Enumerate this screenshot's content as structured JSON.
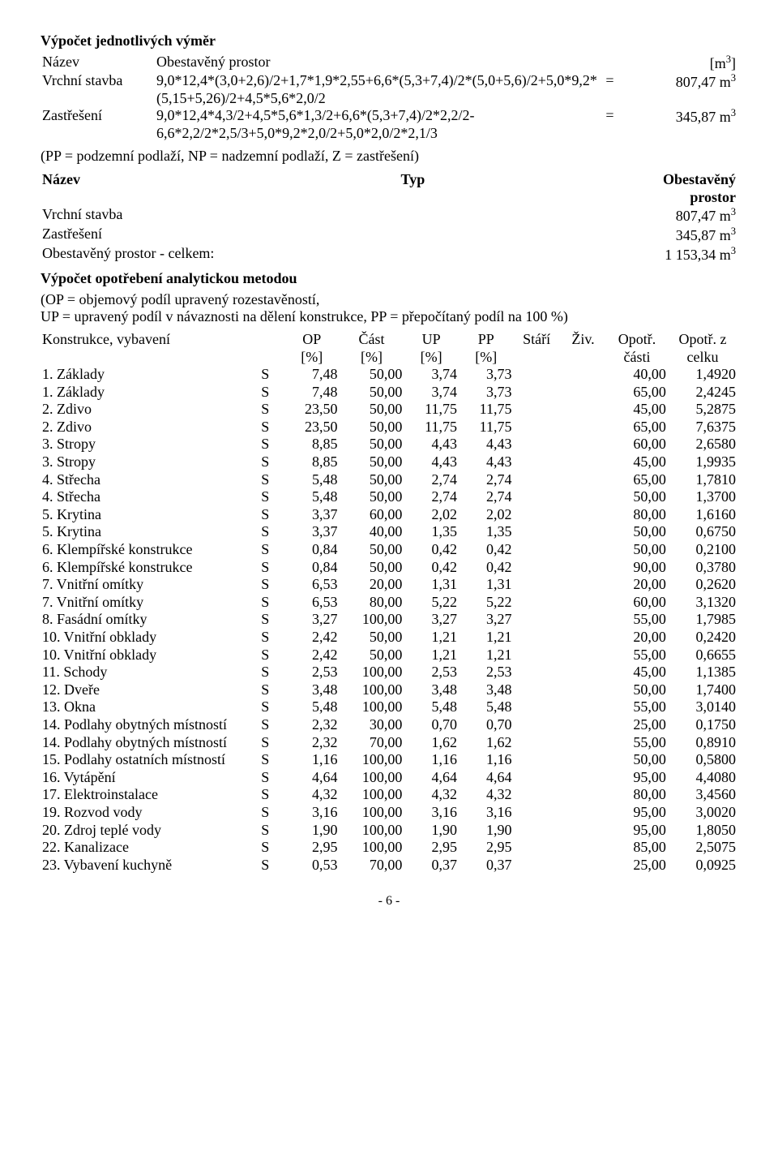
{
  "s1": {
    "title": "Výpočet jednotlivých výměr",
    "h_name": "Název",
    "h_space": "Obestavěný prostor",
    "h_unit": "[m",
    "h_unit_sup": "3",
    "h_unit_close": "]",
    "rows": [
      {
        "name": "Vrchní stavba",
        "formula": "9,0*12,4*(3,0+2,6)/2+1,7*1,9*2,55+6,6*(5,3+7,4)/2*(5,0+5,6)/2+5,0*9,2*(5,15+5,26)/2+4,5*5,6*2,0/2",
        "eq": "=",
        "val": "807,47 m",
        "sup": "3"
      },
      {
        "name": "Zastřešení",
        "formula": "9,0*12,4*4,3/2+4,5*5,6*1,3/2+6,6*(5,3+7,4)/2*2,2/2-6,6*2,2/2*2,5/3+5,0*9,2*2,0/2+5,0*2,0/2*2,1/3",
        "eq": "=",
        "val": "345,87 m",
        "sup": "3"
      }
    ]
  },
  "legend": "(PP = podzemní podlaží, NP = nadzemní podlaží, Z = zastřešení)",
  "s2": {
    "h_name": "Název",
    "h_type": "Typ",
    "h_space1": "Obestavěný",
    "h_space2": "prostor",
    "rows": [
      {
        "name": "Vrchní stavba",
        "val": "807,47 m",
        "sup": "3"
      },
      {
        "name": "Zastřešení",
        "val": "345,87 m",
        "sup": "3"
      },
      {
        "name": "Obestavěný prostor - celkem:",
        "val": "1 153,34 m",
        "sup": "3"
      }
    ]
  },
  "s3": {
    "title": "Výpočet opotřebení analytickou metodou",
    "note1": "(OP = objemový podíl upravený rozestavěností,",
    "note2": "UP = upravený podíl v návaznosti na dělení konstrukce, PP = přepočítaný podíl na 100 %)",
    "h": {
      "name": "Konstrukce, vybavení",
      "op": "OP",
      "cast": "Část",
      "up": "UP",
      "pp": "PP",
      "stari": "Stáří",
      "ziv": "Živ.",
      "oc": "Opotř.",
      "oz": "Opotř. z",
      "pct": "[%]",
      "casti": "části",
      "celku": "celku"
    },
    "rows": [
      {
        "n": "1. Základy",
        "t": "S",
        "op": "7,48",
        "cast": "50,00",
        "up": "3,74",
        "pp": "3,73",
        "oc": "40,00",
        "oz": "1,4920"
      },
      {
        "n": "1. Základy",
        "t": "S",
        "op": "7,48",
        "cast": "50,00",
        "up": "3,74",
        "pp": "3,73",
        "oc": "65,00",
        "oz": "2,4245"
      },
      {
        "n": "2. Zdivo",
        "t": "S",
        "op": "23,50",
        "cast": "50,00",
        "up": "11,75",
        "pp": "11,75",
        "oc": "45,00",
        "oz": "5,2875"
      },
      {
        "n": "2. Zdivo",
        "t": "S",
        "op": "23,50",
        "cast": "50,00",
        "up": "11,75",
        "pp": "11,75",
        "oc": "65,00",
        "oz": "7,6375"
      },
      {
        "n": "3. Stropy",
        "t": "S",
        "op": "8,85",
        "cast": "50,00",
        "up": "4,43",
        "pp": "4,43",
        "oc": "60,00",
        "oz": "2,6580"
      },
      {
        "n": "3. Stropy",
        "t": "S",
        "op": "8,85",
        "cast": "50,00",
        "up": "4,43",
        "pp": "4,43",
        "oc": "45,00",
        "oz": "1,9935"
      },
      {
        "n": "4. Střecha",
        "t": "S",
        "op": "5,48",
        "cast": "50,00",
        "up": "2,74",
        "pp": "2,74",
        "oc": "65,00",
        "oz": "1,7810"
      },
      {
        "n": "4. Střecha",
        "t": "S",
        "op": "5,48",
        "cast": "50,00",
        "up": "2,74",
        "pp": "2,74",
        "oc": "50,00",
        "oz": "1,3700"
      },
      {
        "n": "5. Krytina",
        "t": "S",
        "op": "3,37",
        "cast": "60,00",
        "up": "2,02",
        "pp": "2,02",
        "oc": "80,00",
        "oz": "1,6160"
      },
      {
        "n": "5. Krytina",
        "t": "S",
        "op": "3,37",
        "cast": "40,00",
        "up": "1,35",
        "pp": "1,35",
        "oc": "50,00",
        "oz": "0,6750"
      },
      {
        "n": "6. Klempířské konstrukce",
        "t": "S",
        "op": "0,84",
        "cast": "50,00",
        "up": "0,42",
        "pp": "0,42",
        "oc": "50,00",
        "oz": "0,2100"
      },
      {
        "n": "6. Klempířské konstrukce",
        "t": "S",
        "op": "0,84",
        "cast": "50,00",
        "up": "0,42",
        "pp": "0,42",
        "oc": "90,00",
        "oz": "0,3780"
      },
      {
        "n": "7. Vnitřní omítky",
        "t": "S",
        "op": "6,53",
        "cast": "20,00",
        "up": "1,31",
        "pp": "1,31",
        "oc": "20,00",
        "oz": "0,2620"
      },
      {
        "n": "7. Vnitřní omítky",
        "t": "S",
        "op": "6,53",
        "cast": "80,00",
        "up": "5,22",
        "pp": "5,22",
        "oc": "60,00",
        "oz": "3,1320"
      },
      {
        "n": "8. Fasádní omítky",
        "t": "S",
        "op": "3,27",
        "cast": "100,00",
        "up": "3,27",
        "pp": "3,27",
        "oc": "55,00",
        "oz": "1,7985"
      },
      {
        "n": "10. Vnitřní obklady",
        "t": "S",
        "op": "2,42",
        "cast": "50,00",
        "up": "1,21",
        "pp": "1,21",
        "oc": "20,00",
        "oz": "0,2420"
      },
      {
        "n": "10. Vnitřní obklady",
        "t": "S",
        "op": "2,42",
        "cast": "50,00",
        "up": "1,21",
        "pp": "1,21",
        "oc": "55,00",
        "oz": "0,6655"
      },
      {
        "n": "11. Schody",
        "t": "S",
        "op": "2,53",
        "cast": "100,00",
        "up": "2,53",
        "pp": "2,53",
        "oc": "45,00",
        "oz": "1,1385"
      },
      {
        "n": "12. Dveře",
        "t": "S",
        "op": "3,48",
        "cast": "100,00",
        "up": "3,48",
        "pp": "3,48",
        "oc": "50,00",
        "oz": "1,7400"
      },
      {
        "n": "13. Okna",
        "t": "S",
        "op": "5,48",
        "cast": "100,00",
        "up": "5,48",
        "pp": "5,48",
        "oc": "55,00",
        "oz": "3,0140"
      },
      {
        "n": "14. Podlahy obytných místností",
        "t": "S",
        "op": "2,32",
        "cast": "30,00",
        "up": "0,70",
        "pp": "0,70",
        "oc": "25,00",
        "oz": "0,1750"
      },
      {
        "n": "14. Podlahy obytných místností",
        "t": "S",
        "op": "2,32",
        "cast": "70,00",
        "up": "1,62",
        "pp": "1,62",
        "oc": "55,00",
        "oz": "0,8910"
      },
      {
        "n": "15. Podlahy ostatních místností",
        "t": "S",
        "op": "1,16",
        "cast": "100,00",
        "up": "1,16",
        "pp": "1,16",
        "oc": "50,00",
        "oz": "0,5800"
      },
      {
        "n": "16. Vytápění",
        "t": "S",
        "op": "4,64",
        "cast": "100,00",
        "up": "4,64",
        "pp": "4,64",
        "oc": "95,00",
        "oz": "4,4080"
      },
      {
        "n": "17. Elektroinstalace",
        "t": "S",
        "op": "4,32",
        "cast": "100,00",
        "up": "4,32",
        "pp": "4,32",
        "oc": "80,00",
        "oz": "3,4560"
      },
      {
        "n": "19. Rozvod vody",
        "t": "S",
        "op": "3,16",
        "cast": "100,00",
        "up": "3,16",
        "pp": "3,16",
        "oc": "95,00",
        "oz": "3,0020"
      },
      {
        "n": "20. Zdroj teplé vody",
        "t": "S",
        "op": "1,90",
        "cast": "100,00",
        "up": "1,90",
        "pp": "1,90",
        "oc": "95,00",
        "oz": "1,8050"
      },
      {
        "n": "22. Kanalizace",
        "t": "S",
        "op": "2,95",
        "cast": "100,00",
        "up": "2,95",
        "pp": "2,95",
        "oc": "85,00",
        "oz": "2,5075"
      },
      {
        "n": "23. Vybavení kuchyně",
        "t": "S",
        "op": "0,53",
        "cast": "70,00",
        "up": "0,37",
        "pp": "0,37",
        "oc": "25,00",
        "oz": "0,0925"
      }
    ]
  },
  "footer": "- 6 -"
}
